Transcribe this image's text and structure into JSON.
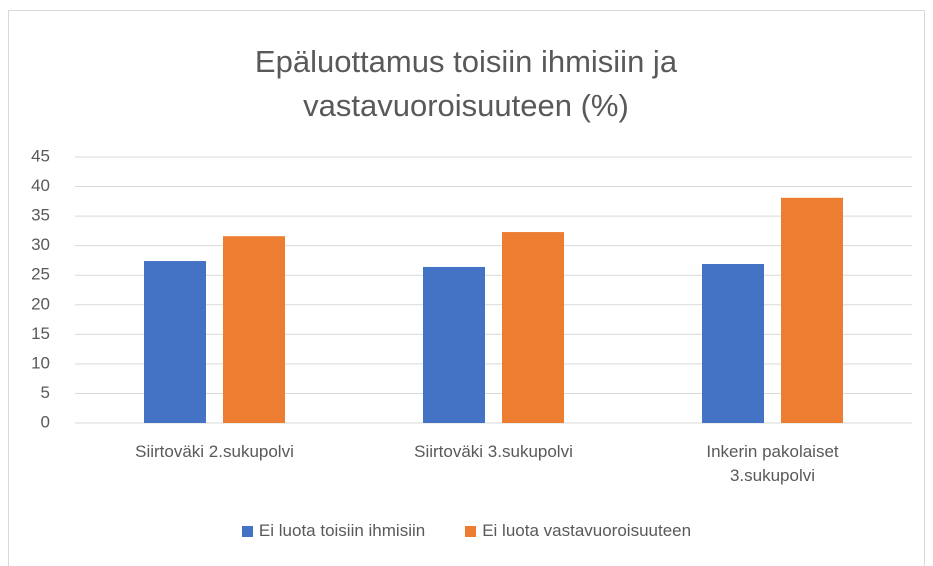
{
  "chart_data": {
    "type": "bar",
    "title": "Epäluottamus toisiin ihmisiin ja vastavuoroisuuteen (%)",
    "categories": [
      "Siirtoväki 2.sukupolvi",
      "Siirtoväki 3.sukupolvi",
      "Inkerin pakolaiset 3.sukupolvi"
    ],
    "series": [
      {
        "name": "Ei luota toisiin ihmisiin",
        "color": "#4472c4",
        "values": [
          27.4,
          26.4,
          26.9
        ]
      },
      {
        "name": "Ei luota vastavuoroisuuteen",
        "color": "#ed7d31",
        "values": [
          31.6,
          32.3,
          38.1
        ]
      }
    ],
    "ylim": [
      0,
      45
    ],
    "yticks": [
      0,
      5,
      10,
      15,
      20,
      25,
      30,
      35,
      40,
      45
    ],
    "grid": true,
    "legend": "bottom"
  }
}
